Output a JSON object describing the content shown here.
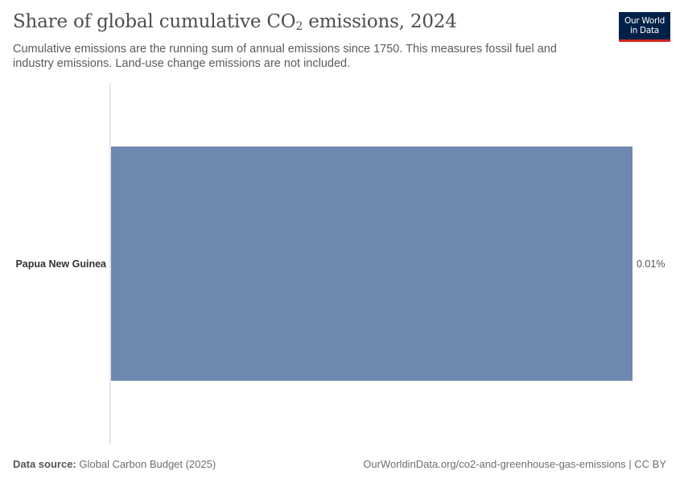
{
  "header": {
    "title_main": "Share of global cumulative CO",
    "title_sub": "2",
    "title_end": " emissions, 2024",
    "subtitle": "Cumulative emissions are the running sum of annual emissions since 1750. This measures fossil fuel and industry emissions. Land-use change emissions are not included."
  },
  "logo": {
    "line1": "Our World",
    "line2": "in Data"
  },
  "footer": {
    "source_label": "Data source:",
    "source_value": "Global Carbon Budget (2025)",
    "url": "OurWorldinData.org/co2-and-greenhouse-gas-emissions | CC BY"
  },
  "colors": {
    "bar": "#6f88b0",
    "axis": "#cccccc",
    "label": "#333333",
    "value_label": "#555555"
  },
  "chart_data": {
    "type": "bar",
    "orientation": "horizontal",
    "categories": [
      "Papua New Guinea"
    ],
    "values": [
      0.01
    ],
    "value_labels": [
      "0.01%"
    ],
    "unit": "%",
    "xlim": [
      0,
      0.01
    ]
  }
}
